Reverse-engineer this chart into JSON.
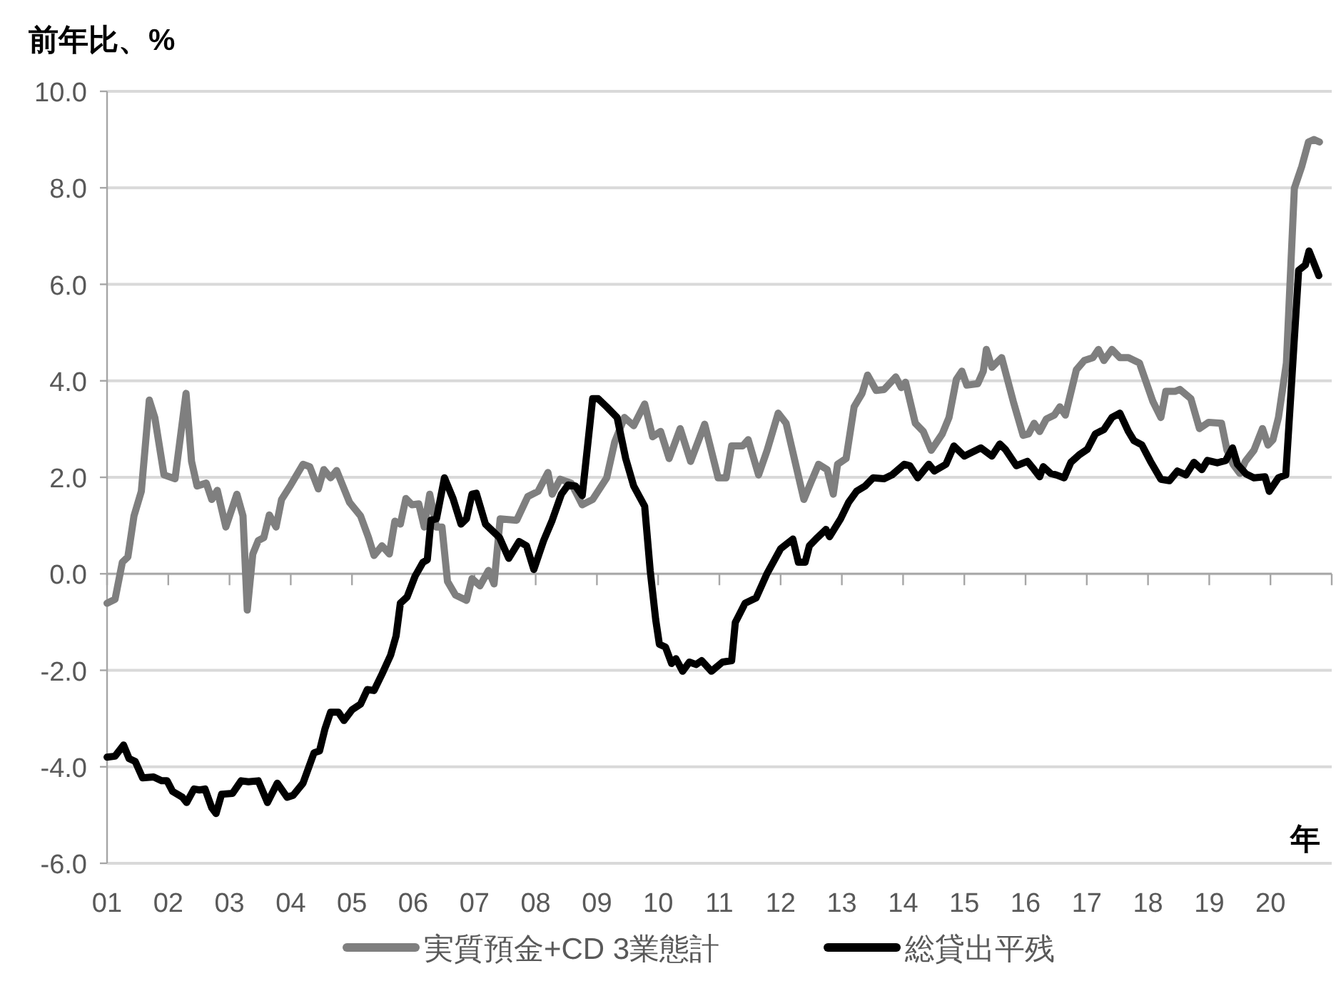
{
  "chart_data": {
    "type": "line",
    "ylabel": "前年比、%",
    "xlabel": "年",
    "xlim": [
      2001,
      2021
    ],
    "xticks": [
      {
        "value": 2001,
        "label": "01"
      },
      {
        "value": 2002,
        "label": "02"
      },
      {
        "value": 2003,
        "label": "03"
      },
      {
        "value": 2004,
        "label": "04"
      },
      {
        "value": 2005,
        "label": "05"
      },
      {
        "value": 2006,
        "label": "06"
      },
      {
        "value": 2007,
        "label": "07"
      },
      {
        "value": 2008,
        "label": "08"
      },
      {
        "value": 2009,
        "label": "09"
      },
      {
        "value": 2010,
        "label": "10"
      },
      {
        "value": 2011,
        "label": "11"
      },
      {
        "value": 2012,
        "label": "12"
      },
      {
        "value": 2013,
        "label": "13"
      },
      {
        "value": 2014,
        "label": "14"
      },
      {
        "value": 2015,
        "label": "15"
      },
      {
        "value": 2016,
        "label": "16"
      },
      {
        "value": 2017,
        "label": "17"
      },
      {
        "value": 2018,
        "label": "18"
      },
      {
        "value": 2019,
        "label": "19"
      },
      {
        "value": 2020,
        "label": "20"
      },
      {
        "value": 2021,
        "label": null
      }
    ],
    "ylim": [
      -6,
      10
    ],
    "yticks": [
      {
        "value": 10,
        "label": "10.0"
      },
      {
        "value": 8,
        "label": "8.0"
      },
      {
        "value": 6,
        "label": "6.0"
      },
      {
        "value": 4,
        "label": "4.0"
      },
      {
        "value": 2,
        "label": "2.0"
      },
      {
        "value": 0,
        "label": "0.0"
      },
      {
        "value": -2,
        "label": "-2.0"
      },
      {
        "value": -4,
        "label": "-4.0"
      },
      {
        "value": -6,
        "label": "-6.0"
      }
    ],
    "grid": "y",
    "legend": "bottom",
    "series": [
      {
        "name": "実質預金+CD  3業態計",
        "color": "#7f7f7f",
        "x": [
          2001.0,
          2001.13,
          2001.25,
          2001.34,
          2001.44,
          2001.56,
          2001.69,
          2001.78,
          2001.93,
          2002.11,
          2002.29,
          2002.38,
          2002.47,
          2002.62,
          2002.71,
          2002.8,
          2002.94,
          2003.03,
          2003.12,
          2003.22,
          2003.29,
          2003.38,
          2003.47,
          2003.56,
          2003.65,
          2003.76,
          2003.85,
          2004.0,
          2004.2,
          2004.31,
          2004.45,
          2004.54,
          2004.65,
          2004.75,
          2004.96,
          2005.14,
          2005.27,
          2005.36,
          2005.49,
          2005.61,
          2005.7,
          2005.79,
          2005.88,
          2005.98,
          2006.09,
          2006.18,
          2006.27,
          2006.38,
          2006.47,
          2006.56,
          2006.69,
          2006.87,
          2006.96,
          2007.09,
          2007.23,
          2007.32,
          2007.42,
          2007.69,
          2007.87,
          2008.04,
          2008.2,
          2008.27,
          2008.4,
          2008.58,
          2008.76,
          2008.93,
          2009.16,
          2009.29,
          2009.45,
          2009.6,
          2009.78,
          2009.91,
          2010.04,
          2010.18,
          2010.36,
          2010.53,
          2010.76,
          2010.98,
          2011.11,
          2011.2,
          2011.38,
          2011.47,
          2011.64,
          2011.78,
          2011.96,
          2012.09,
          2012.38,
          2012.49,
          2012.62,
          2012.76,
          2012.86,
          2012.93,
          2013.07,
          2013.2,
          2013.33,
          2013.42,
          2013.56,
          2013.69,
          2013.88,
          2013.97,
          2014.04,
          2014.2,
          2014.33,
          2014.46,
          2014.64,
          2014.75,
          2014.87,
          2014.96,
          2015.04,
          2015.22,
          2015.31,
          2015.36,
          2015.45,
          2015.61,
          2015.8,
          2015.96,
          2016.05,
          2016.14,
          2016.23,
          2016.34,
          2016.47,
          2016.56,
          2016.65,
          2016.83,
          2016.96,
          2017.1,
          2017.19,
          2017.28,
          2017.41,
          2017.54,
          2017.68,
          2017.86,
          2018.08,
          2018.21,
          2018.29,
          2018.44,
          2018.52,
          2018.7,
          2018.84,
          2018.99,
          2019.2,
          2019.29,
          2019.39,
          2019.5,
          2019.59,
          2019.73,
          2019.87,
          2019.96,
          2020.04,
          2020.13,
          2020.26,
          2020.39,
          2020.51,
          2020.62,
          2020.71,
          2020.8
        ],
        "values": [
          -0.61,
          -0.53,
          0.24,
          0.35,
          1.2,
          1.71,
          3.6,
          3.24,
          2.05,
          1.97,
          3.74,
          2.33,
          1.82,
          1.88,
          1.54,
          1.73,
          0.97,
          1.31,
          1.65,
          1.2,
          -0.75,
          0.41,
          0.69,
          0.75,
          1.22,
          0.97,
          1.54,
          1.84,
          2.27,
          2.22,
          1.76,
          2.16,
          1.99,
          2.14,
          1.48,
          1.2,
          0.75,
          0.38,
          0.58,
          0.41,
          1.09,
          1.03,
          1.56,
          1.43,
          1.45,
          0.97,
          1.65,
          0.97,
          0.97,
          -0.16,
          -0.44,
          -0.55,
          -0.1,
          -0.25,
          0.07,
          -0.21,
          1.14,
          1.11,
          1.6,
          1.71,
          2.1,
          1.65,
          1.96,
          1.88,
          1.43,
          1.54,
          1.99,
          2.73,
          3.24,
          3.07,
          3.52,
          2.84,
          2.95,
          2.39,
          3.01,
          2.33,
          3.1,
          1.99,
          1.99,
          2.65,
          2.65,
          2.78,
          2.05,
          2.56,
          3.33,
          3.12,
          1.54,
          1.88,
          2.27,
          2.16,
          1.65,
          2.27,
          2.39,
          3.46,
          3.74,
          4.12,
          3.8,
          3.82,
          4.08,
          3.86,
          3.97,
          3.12,
          2.95,
          2.56,
          2.9,
          3.24,
          4.03,
          4.2,
          3.91,
          3.94,
          4.2,
          4.65,
          4.28,
          4.48,
          3.57,
          2.87,
          2.9,
          3.12,
          2.95,
          3.21,
          3.29,
          3.46,
          3.29,
          4.23,
          4.42,
          4.48,
          4.65,
          4.42,
          4.65,
          4.48,
          4.48,
          4.37,
          3.57,
          3.24,
          3.78,
          3.78,
          3.82,
          3.63,
          3.01,
          3.14,
          3.12,
          2.56,
          2.27,
          2.08,
          2.33,
          2.56,
          3.01,
          2.67,
          2.78,
          3.24,
          4.37,
          7.99,
          8.44,
          8.95,
          9.0,
          8.95
        ]
      },
      {
        "name": "総貸出平残",
        "color": "#000000",
        "x": [
          2001.0,
          2001.13,
          2001.27,
          2001.36,
          2001.46,
          2001.58,
          2001.76,
          2001.89,
          2001.98,
          2002.07,
          2002.23,
          2002.3,
          2002.42,
          2002.51,
          2002.6,
          2002.71,
          2002.78,
          2002.87,
          2003.05,
          2003.19,
          2003.31,
          2003.47,
          2003.62,
          2003.78,
          2003.94,
          2004.04,
          2004.2,
          2004.38,
          2004.47,
          2004.56,
          2004.65,
          2004.78,
          2004.87,
          2005.0,
          2005.14,
          2005.25,
          2005.36,
          2005.49,
          2005.63,
          2005.72,
          2005.79,
          2005.9,
          2006.03,
          2006.16,
          2006.23,
          2006.29,
          2006.38,
          2006.51,
          2006.65,
          2006.78,
          2006.87,
          2006.96,
          2007.03,
          2007.18,
          2007.41,
          2007.56,
          2007.73,
          2007.85,
          2007.97,
          2008.13,
          2008.27,
          2008.42,
          2008.53,
          2008.65,
          2008.76,
          2008.84,
          2008.93,
          2009.02,
          2009.16,
          2009.33,
          2009.47,
          2009.6,
          2009.78,
          2009.87,
          2009.96,
          2010.02,
          2010.12,
          2010.22,
          2010.29,
          2010.4,
          2010.51,
          2010.62,
          2010.71,
          2010.87,
          2011.05,
          2011.2,
          2011.26,
          2011.42,
          2011.6,
          2011.78,
          2012.0,
          2012.2,
          2012.29,
          2012.4,
          2012.47,
          2012.6,
          2012.74,
          2012.8,
          2012.98,
          2013.11,
          2013.24,
          2013.38,
          2013.51,
          2013.69,
          2013.82,
          2014.02,
          2014.11,
          2014.24,
          2014.42,
          2014.51,
          2014.7,
          2014.83,
          2015.0,
          2015.27,
          2015.45,
          2015.58,
          2015.67,
          2015.85,
          2016.03,
          2016.14,
          2016.23,
          2016.29,
          2016.41,
          2016.5,
          2016.63,
          2016.74,
          2016.88,
          2017.01,
          2017.14,
          2017.28,
          2017.41,
          2017.54,
          2017.68,
          2017.77,
          2017.9,
          2018.04,
          2018.21,
          2018.35,
          2018.48,
          2018.62,
          2018.75,
          2018.88,
          2018.97,
          2019.13,
          2019.27,
          2019.38,
          2019.46,
          2019.6,
          2019.73,
          2019.91,
          2019.98,
          2020.13,
          2020.25,
          2020.46,
          2020.57,
          2020.63,
          2020.79
        ],
        "values": [
          -3.8,
          -3.78,
          -3.55,
          -3.83,
          -3.89,
          -4.23,
          -4.21,
          -4.29,
          -4.29,
          -4.51,
          -4.63,
          -4.74,
          -4.46,
          -4.48,
          -4.46,
          -4.85,
          -4.97,
          -4.57,
          -4.55,
          -4.29,
          -4.31,
          -4.29,
          -4.74,
          -4.34,
          -4.63,
          -4.59,
          -4.34,
          -3.71,
          -3.67,
          -3.21,
          -2.87,
          -2.87,
          -3.04,
          -2.82,
          -2.7,
          -2.4,
          -2.42,
          -2.08,
          -1.69,
          -1.29,
          -0.61,
          -0.48,
          -0.05,
          0.24,
          0.29,
          1.11,
          1.14,
          1.99,
          1.56,
          1.03,
          1.14,
          1.65,
          1.67,
          1.03,
          0.75,
          0.32,
          0.67,
          0.58,
          0.09,
          0.69,
          1.11,
          1.65,
          1.84,
          1.82,
          1.62,
          2.56,
          3.63,
          3.63,
          3.46,
          3.24,
          2.39,
          1.82,
          1.4,
          0.07,
          -0.95,
          -1.46,
          -1.52,
          -1.86,
          -1.76,
          -2.02,
          -1.83,
          -1.88,
          -1.8,
          -2.02,
          -1.83,
          -1.8,
          -1.01,
          -0.61,
          -0.5,
          0.01,
          0.52,
          0.72,
          0.24,
          0.24,
          0.58,
          0.75,
          0.92,
          0.77,
          1.14,
          1.48,
          1.71,
          1.82,
          1.99,
          1.97,
          2.05,
          2.27,
          2.24,
          1.99,
          2.27,
          2.13,
          2.27,
          2.65,
          2.44,
          2.61,
          2.44,
          2.69,
          2.58,
          2.24,
          2.33,
          2.16,
          2.01,
          2.22,
          2.08,
          2.05,
          1.99,
          2.31,
          2.47,
          2.58,
          2.9,
          2.99,
          3.24,
          3.33,
          2.95,
          2.76,
          2.67,
          2.33,
          1.96,
          1.93,
          2.13,
          2.05,
          2.31,
          2.16,
          2.35,
          2.3,
          2.35,
          2.61,
          2.27,
          2.07,
          1.99,
          2.01,
          1.71,
          1.99,
          2.05,
          6.29,
          6.4,
          6.69,
          6.18
        ]
      }
    ]
  }
}
